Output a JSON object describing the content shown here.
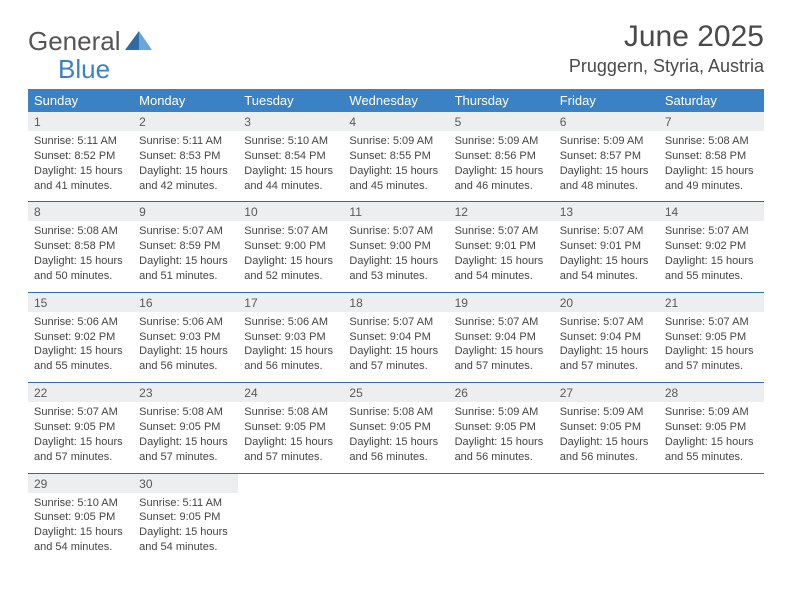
{
  "brand": {
    "word1": "General",
    "word2": "Blue"
  },
  "title": "June 2025",
  "location": "Pruggern, Styria, Austria",
  "colors": {
    "header_bg": "#3b82c4",
    "header_text": "#ffffff",
    "daynum_bg": "#eceef0",
    "daynum_text": "#595959",
    "body_text": "#444444",
    "rule": "#2e6ca8",
    "brand_gray": "#555555",
    "brand_blue": "#3b82c4"
  },
  "day_names": [
    "Sunday",
    "Monday",
    "Tuesday",
    "Wednesday",
    "Thursday",
    "Friday",
    "Saturday"
  ],
  "weeks": [
    [
      {
        "n": "1",
        "sr": "5:11 AM",
        "ss": "8:52 PM",
        "dl": "15 hours and 41 minutes."
      },
      {
        "n": "2",
        "sr": "5:11 AM",
        "ss": "8:53 PM",
        "dl": "15 hours and 42 minutes."
      },
      {
        "n": "3",
        "sr": "5:10 AM",
        "ss": "8:54 PM",
        "dl": "15 hours and 44 minutes."
      },
      {
        "n": "4",
        "sr": "5:09 AM",
        "ss": "8:55 PM",
        "dl": "15 hours and 45 minutes."
      },
      {
        "n": "5",
        "sr": "5:09 AM",
        "ss": "8:56 PM",
        "dl": "15 hours and 46 minutes."
      },
      {
        "n": "6",
        "sr": "5:09 AM",
        "ss": "8:57 PM",
        "dl": "15 hours and 48 minutes."
      },
      {
        "n": "7",
        "sr": "5:08 AM",
        "ss": "8:58 PM",
        "dl": "15 hours and 49 minutes."
      }
    ],
    [
      {
        "n": "8",
        "sr": "5:08 AM",
        "ss": "8:58 PM",
        "dl": "15 hours and 50 minutes."
      },
      {
        "n": "9",
        "sr": "5:07 AM",
        "ss": "8:59 PM",
        "dl": "15 hours and 51 minutes."
      },
      {
        "n": "10",
        "sr": "5:07 AM",
        "ss": "9:00 PM",
        "dl": "15 hours and 52 minutes."
      },
      {
        "n": "11",
        "sr": "5:07 AM",
        "ss": "9:00 PM",
        "dl": "15 hours and 53 minutes."
      },
      {
        "n": "12",
        "sr": "5:07 AM",
        "ss": "9:01 PM",
        "dl": "15 hours and 54 minutes."
      },
      {
        "n": "13",
        "sr": "5:07 AM",
        "ss": "9:01 PM",
        "dl": "15 hours and 54 minutes."
      },
      {
        "n": "14",
        "sr": "5:07 AM",
        "ss": "9:02 PM",
        "dl": "15 hours and 55 minutes."
      }
    ],
    [
      {
        "n": "15",
        "sr": "5:06 AM",
        "ss": "9:02 PM",
        "dl": "15 hours and 55 minutes."
      },
      {
        "n": "16",
        "sr": "5:06 AM",
        "ss": "9:03 PM",
        "dl": "15 hours and 56 minutes."
      },
      {
        "n": "17",
        "sr": "5:06 AM",
        "ss": "9:03 PM",
        "dl": "15 hours and 56 minutes."
      },
      {
        "n": "18",
        "sr": "5:07 AM",
        "ss": "9:04 PM",
        "dl": "15 hours and 57 minutes."
      },
      {
        "n": "19",
        "sr": "5:07 AM",
        "ss": "9:04 PM",
        "dl": "15 hours and 57 minutes."
      },
      {
        "n": "20",
        "sr": "5:07 AM",
        "ss": "9:04 PM",
        "dl": "15 hours and 57 minutes."
      },
      {
        "n": "21",
        "sr": "5:07 AM",
        "ss": "9:05 PM",
        "dl": "15 hours and 57 minutes."
      }
    ],
    [
      {
        "n": "22",
        "sr": "5:07 AM",
        "ss": "9:05 PM",
        "dl": "15 hours and 57 minutes."
      },
      {
        "n": "23",
        "sr": "5:08 AM",
        "ss": "9:05 PM",
        "dl": "15 hours and 57 minutes."
      },
      {
        "n": "24",
        "sr": "5:08 AM",
        "ss": "9:05 PM",
        "dl": "15 hours and 57 minutes."
      },
      {
        "n": "25",
        "sr": "5:08 AM",
        "ss": "9:05 PM",
        "dl": "15 hours and 56 minutes."
      },
      {
        "n": "26",
        "sr": "5:09 AM",
        "ss": "9:05 PM",
        "dl": "15 hours and 56 minutes."
      },
      {
        "n": "27",
        "sr": "5:09 AM",
        "ss": "9:05 PM",
        "dl": "15 hours and 56 minutes."
      },
      {
        "n": "28",
        "sr": "5:09 AM",
        "ss": "9:05 PM",
        "dl": "15 hours and 55 minutes."
      }
    ],
    [
      {
        "n": "29",
        "sr": "5:10 AM",
        "ss": "9:05 PM",
        "dl": "15 hours and 54 minutes."
      },
      {
        "n": "30",
        "sr": "5:11 AM",
        "ss": "9:05 PM",
        "dl": "15 hours and 54 minutes."
      },
      null,
      null,
      null,
      null,
      null
    ]
  ],
  "labels": {
    "sunrise": "Sunrise: ",
    "sunset": "Sunset: ",
    "daylight": "Daylight: "
  }
}
